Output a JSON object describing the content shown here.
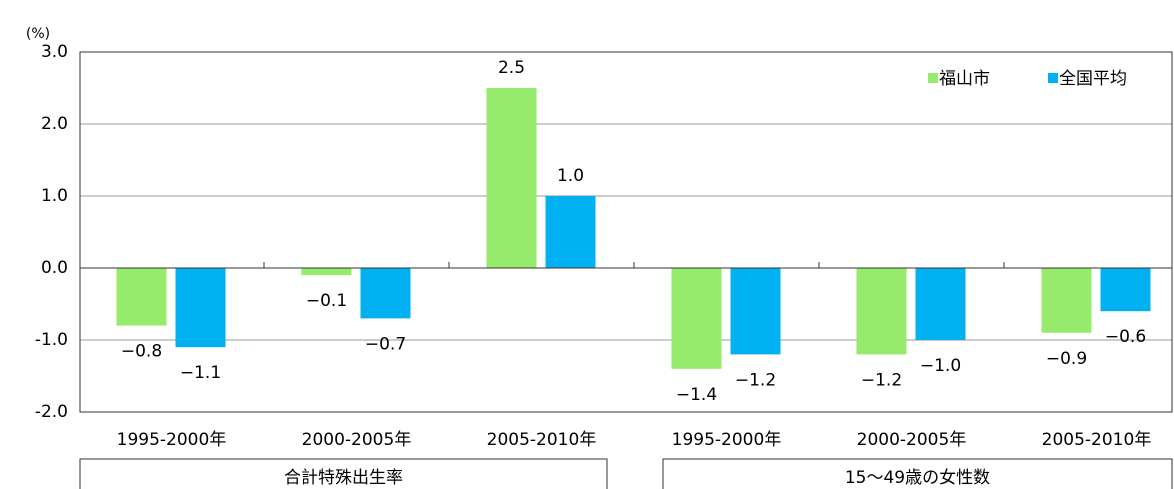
{
  "chart_data": {
    "type": "bar",
    "unit_label": "(%)",
    "groups": [
      {
        "name": "合計特殊出生率",
        "categories": [
          "1995-2000年",
          "2000-2005年",
          "2005-2010年"
        ]
      },
      {
        "name": "15〜49歳の女性数",
        "categories": [
          "1995-2000年",
          "2000-2005年",
          "2005-2010年"
        ]
      }
    ],
    "series": [
      {
        "name": "福山市",
        "color": "#96ea6c",
        "values": [
          -0.8,
          -0.1,
          2.5,
          -1.4,
          -1.2,
          -0.9
        ],
        "value_labels": [
          "−0.8",
          "−0.1",
          "2.5",
          "−1.4",
          "−1.2",
          "−0.9"
        ]
      },
      {
        "name": "全国平均",
        "color": "#00b0f0",
        "values": [
          -1.1,
          -0.7,
          1.0,
          -1.2,
          -1.0,
          -0.6
        ],
        "value_labels": [
          "−1.1",
          "−0.7",
          "1.0",
          "−1.2",
          "−1.0",
          "−0.6"
        ]
      }
    ],
    "ylim": [
      -2,
      3
    ],
    "yticks": [
      {
        "value": -2,
        "label": "-2.0"
      },
      {
        "value": -1,
        "label": "-1.0"
      },
      {
        "value": 0,
        "label": "0.0"
      },
      {
        "value": 1,
        "label": "1.0"
      },
      {
        "value": 2,
        "label": "2.0"
      },
      {
        "value": 3,
        "label": "3.0"
      }
    ],
    "grid": true,
    "legend": "top-right"
  }
}
